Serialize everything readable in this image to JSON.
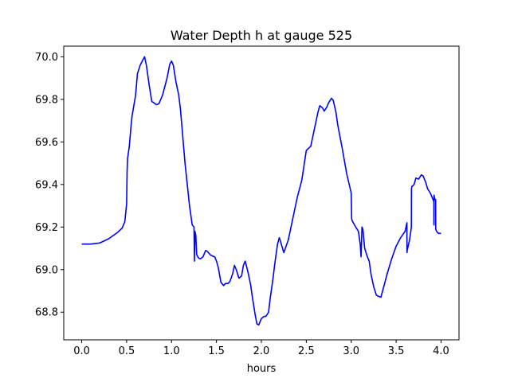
{
  "chart_data": {
    "type": "line",
    "title": "Water Depth h at gauge 525",
    "xlabel": "hours",
    "ylabel": "",
    "xlim": [
      -0.2,
      4.2
    ],
    "ylim": [
      68.67,
      70.05
    ],
    "grid": false,
    "xticks": [
      0.0,
      0.5,
      1.0,
      1.5,
      2.0,
      2.5,
      3.0,
      3.5,
      4.0
    ],
    "xtick_labels": [
      "0.0",
      "0.5",
      "1.0",
      "1.5",
      "2.0",
      "2.5",
      "3.0",
      "3.5",
      "4.0"
    ],
    "yticks": [
      68.8,
      69.0,
      69.2,
      69.4,
      69.6,
      69.8,
      70.0
    ],
    "ytick_labels": [
      "68.8",
      "69.0",
      "69.2",
      "69.4",
      "69.6",
      "69.8",
      "70.0"
    ],
    "series": [
      {
        "color": "#0000ff",
        "x": [
          0.0,
          0.1,
          0.2,
          0.3,
          0.4,
          0.45,
          0.48,
          0.5,
          0.505,
          0.51,
          0.53,
          0.55,
          0.56,
          0.6,
          0.62,
          0.65,
          0.68,
          0.7,
          0.72,
          0.75,
          0.78,
          0.8,
          0.83,
          0.86,
          0.9,
          0.95,
          0.98,
          1.0,
          1.02,
          1.05,
          1.08,
          1.1,
          1.15,
          1.2,
          1.23,
          1.25,
          1.255,
          1.26,
          1.27,
          1.28,
          1.3,
          1.32,
          1.35,
          1.38,
          1.4,
          1.43,
          1.45,
          1.48,
          1.5,
          1.52,
          1.55,
          1.58,
          1.6,
          1.63,
          1.65,
          1.68,
          1.7,
          1.72,
          1.75,
          1.78,
          1.8,
          1.82,
          1.85,
          1.88,
          1.9,
          1.93,
          1.95,
          1.97,
          2.0,
          2.03,
          2.05,
          2.08,
          2.1,
          2.13,
          2.15,
          2.18,
          2.2,
          2.25,
          2.3,
          2.35,
          2.4,
          2.45,
          2.5,
          2.55,
          2.6,
          2.63,
          2.65,
          2.68,
          2.7,
          2.73,
          2.75,
          2.78,
          2.8,
          2.83,
          2.85,
          2.9,
          2.95,
          3.0,
          3.005,
          3.01,
          3.05,
          3.08,
          3.1,
          3.11,
          3.12,
          3.13,
          3.15,
          3.18,
          3.2,
          3.22,
          3.25,
          3.28,
          3.3,
          3.33,
          3.35,
          3.4,
          3.45,
          3.5,
          3.55,
          3.6,
          3.62,
          3.621,
          3.623,
          3.65,
          3.67,
          3.671,
          3.675,
          3.7,
          3.72,
          3.75,
          3.78,
          3.8,
          3.83,
          3.85,
          3.88,
          3.9,
          3.92,
          3.921,
          3.922,
          3.93,
          3.94,
          3.941,
          3.95,
          3.97,
          4.0
        ],
        "y": [
          69.12,
          69.12,
          69.125,
          69.145,
          69.175,
          69.195,
          69.225,
          69.31,
          69.46,
          69.52,
          69.58,
          69.68,
          69.72,
          69.82,
          69.92,
          69.96,
          69.985,
          70.0,
          69.96,
          69.87,
          69.79,
          69.785,
          69.775,
          69.78,
          69.82,
          69.9,
          69.965,
          69.98,
          69.96,
          69.88,
          69.82,
          69.75,
          69.5,
          69.3,
          69.21,
          69.2,
          69.04,
          69.18,
          69.16,
          69.07,
          69.055,
          69.05,
          69.06,
          69.09,
          69.085,
          69.07,
          69.065,
          69.06,
          69.04,
          69.01,
          68.94,
          68.925,
          68.935,
          68.935,
          68.945,
          68.98,
          69.02,
          69.0,
          68.96,
          68.97,
          69.02,
          69.04,
          68.99,
          68.93,
          68.87,
          68.79,
          68.745,
          68.74,
          68.77,
          68.78,
          68.78,
          68.8,
          68.87,
          68.96,
          69.03,
          69.12,
          69.15,
          69.08,
          69.14,
          69.24,
          69.34,
          69.42,
          69.56,
          69.58,
          69.68,
          69.74,
          69.77,
          69.76,
          69.745,
          69.765,
          69.785,
          69.805,
          69.795,
          69.74,
          69.68,
          69.57,
          69.45,
          69.36,
          69.24,
          69.23,
          69.2,
          69.18,
          69.12,
          69.06,
          69.2,
          69.19,
          69.1,
          69.06,
          69.04,
          68.98,
          68.92,
          68.88,
          68.875,
          68.87,
          68.9,
          68.98,
          69.05,
          69.11,
          69.15,
          69.18,
          69.22,
          69.08,
          69.09,
          69.14,
          69.2,
          69.38,
          69.39,
          69.4,
          69.43,
          69.425,
          69.445,
          69.44,
          69.41,
          69.38,
          69.36,
          69.34,
          69.32,
          69.21,
          69.35,
          69.33,
          69.33,
          69.19,
          69.18,
          69.17,
          69.17
        ]
      }
    ]
  }
}
